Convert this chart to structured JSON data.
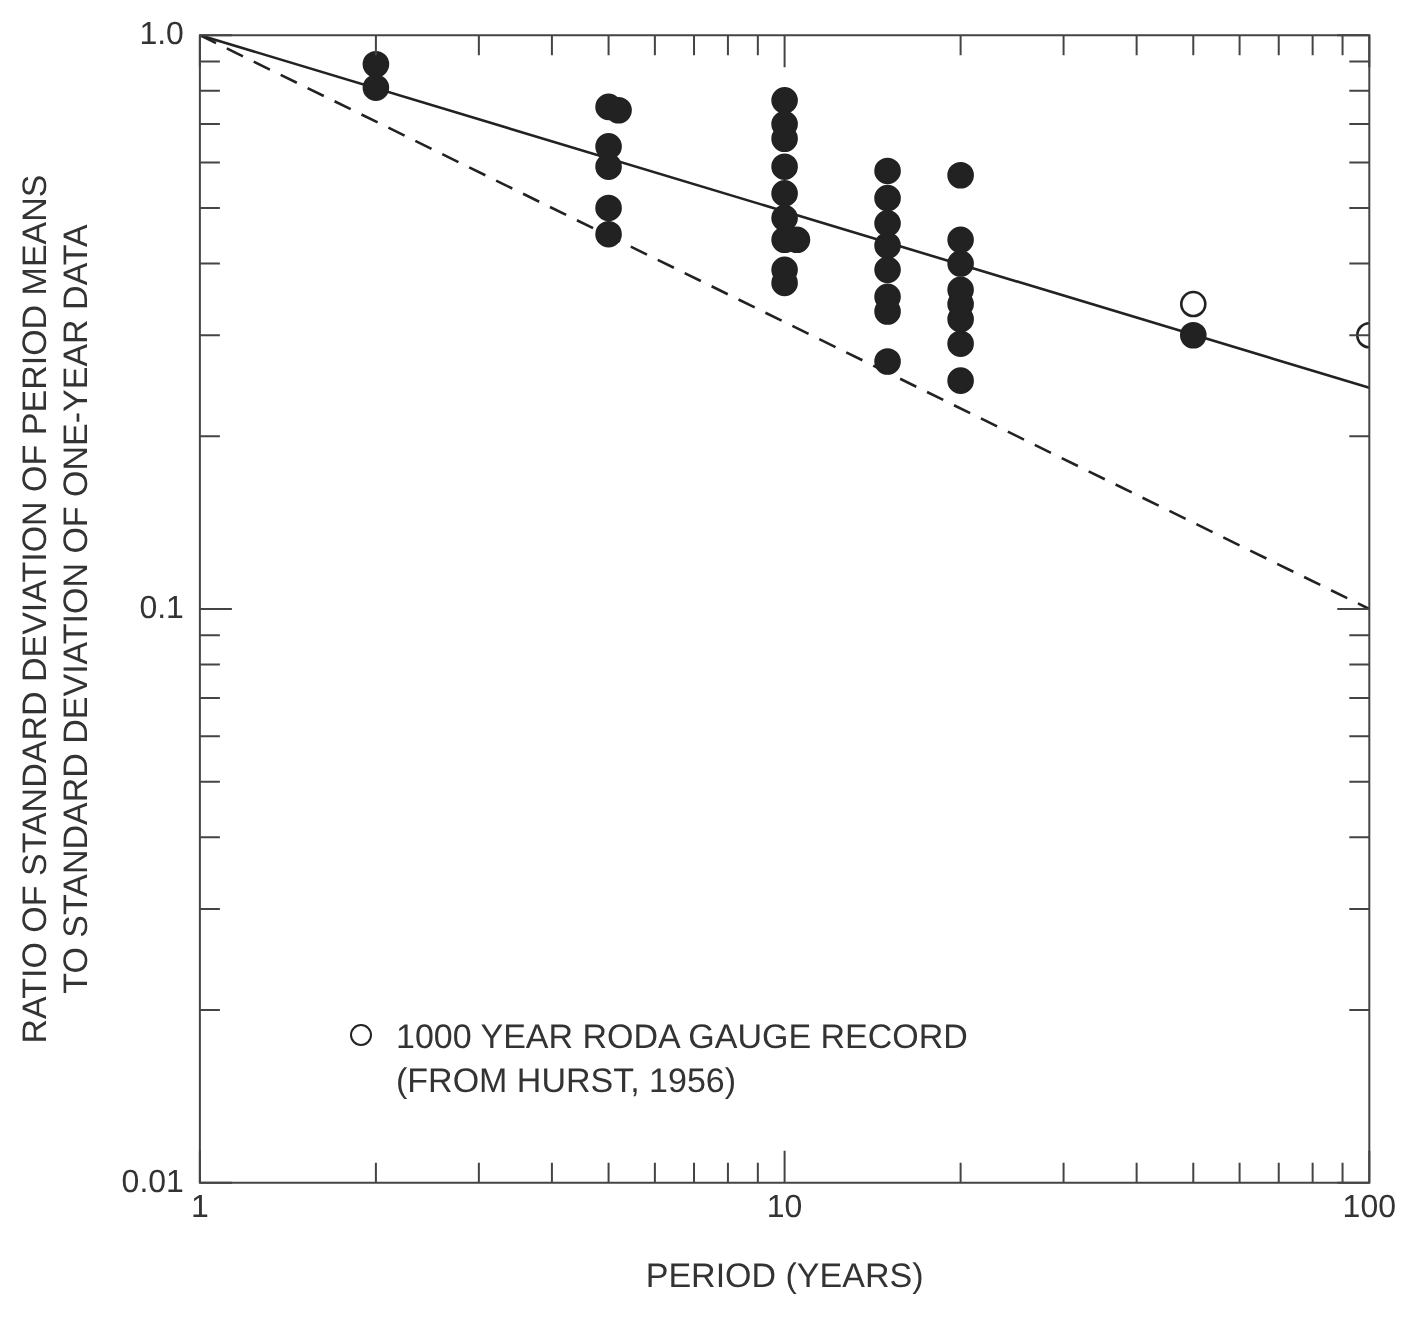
{
  "chart_data": {
    "type": "scatter",
    "xlabel": "PERIOD (YEARS)",
    "ylabel": "RATIO OF STANDARD DEVIATION OF PERIOD MEANS\nTO STANDARD DEVIATION OF ONE-YEAR DATA",
    "log": "xy",
    "xlim": [
      1,
      100
    ],
    "ylim": [
      0.01,
      1
    ],
    "xticks": [
      1,
      {
        "value": 2,
        "label": null
      },
      {
        "value": 3,
        "label": null
      },
      {
        "value": 4,
        "label": null
      },
      {
        "value": 5,
        "label": null
      },
      {
        "value": 6,
        "label": null
      },
      {
        "value": 7,
        "label": null
      },
      {
        "value": 8,
        "label": null
      },
      {
        "value": 9,
        "label": null
      },
      10,
      {
        "value": 20,
        "label": null
      },
      {
        "value": 30,
        "label": null
      },
      {
        "value": 40,
        "label": null
      },
      {
        "value": 50,
        "label": null
      },
      {
        "value": 60,
        "label": null
      },
      {
        "value": 70,
        "label": null
      },
      {
        "value": 80,
        "label": null
      },
      {
        "value": 90,
        "label": null
      },
      100
    ],
    "yticks": [
      0.01,
      {
        "value": 0.02,
        "label": null
      },
      {
        "value": 0.03,
        "label": null
      },
      {
        "value": 0.04,
        "label": null
      },
      {
        "value": 0.05,
        "label": null
      },
      {
        "value": 0.06,
        "label": null
      },
      {
        "value": 0.07,
        "label": null
      },
      {
        "value": 0.08,
        "label": null
      },
      {
        "value": 0.09,
        "label": null
      },
      0.1,
      {
        "value": 0.2,
        "label": null
      },
      {
        "value": 0.3,
        "label": null
      },
      {
        "value": 0.4,
        "label": null
      },
      {
        "value": 0.5,
        "label": null
      },
      {
        "value": 0.6,
        "label": null
      },
      {
        "value": 0.7,
        "label": null
      },
      {
        "value": 0.8,
        "label": null
      },
      {
        "value": 0.9,
        "label": null
      },
      {
        "value": 1,
        "label": "1.0"
      }
    ],
    "grid": false,
    "legend": "bottom left",
    "marker": "circle",
    "series": [
      {
        "type": "scatter",
        "color": "#222222",
        "x": [
          2,
          2,
          5,
          5.2,
          5,
          5,
          5,
          5,
          10,
          10,
          10,
          10,
          10,
          10,
          10,
          10.5,
          10,
          10,
          15,
          15,
          15,
          15,
          15,
          15,
          15,
          15,
          20,
          20,
          20,
          20,
          20,
          20,
          20,
          20,
          50
        ],
        "values": [
          0.89,
          0.81,
          0.75,
          0.74,
          0.64,
          0.59,
          0.5,
          0.45,
          0.77,
          0.7,
          0.66,
          0.59,
          0.53,
          0.48,
          0.44,
          0.44,
          0.39,
          0.37,
          0.58,
          0.52,
          0.47,
          0.43,
          0.39,
          0.35,
          0.33,
          0.27,
          0.57,
          0.44,
          0.4,
          0.36,
          0.34,
          0.32,
          0.29,
          0.25,
          0.3
        ]
      },
      {
        "type": "scatter",
        "name": "1000 YEAR RODA GAUGE RECORD (FROM HURST, 1956)",
        "color": "#222222",
        "x": [
          50,
          100
        ],
        "values": [
          0.34,
          0.3
        ]
      },
      {
        "type": "line",
        "color": "#222222",
        "marker": "none",
        "line_style": "solid",
        "x": [
          1,
          100
        ],
        "values": [
          1,
          0.243
        ]
      },
      {
        "type": "line",
        "color": "#222222",
        "marker": "none",
        "line_style": "dashed",
        "x": [
          1,
          100
        ],
        "values": [
          1,
          0.1
        ]
      }
    ]
  }
}
